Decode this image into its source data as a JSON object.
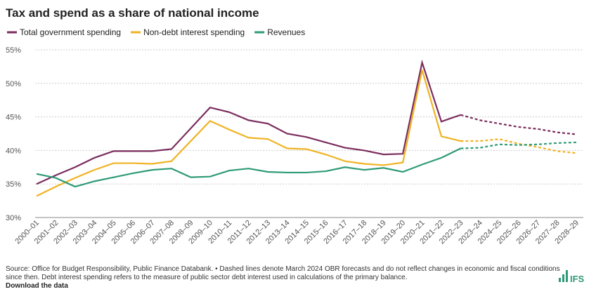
{
  "chart_data": {
    "type": "line",
    "title": "Tax and spend as a share of national income",
    "categories": [
      "2000–01",
      "2001–02",
      "2002–03",
      "2003–04",
      "2004–05",
      "2005–06",
      "2006–07",
      "2007–08",
      "2008–09",
      "2009–10",
      "2010–11",
      "2011–12",
      "2012–13",
      "2013–14",
      "2014–15",
      "2015–16",
      "2016–17",
      "2017–18",
      "2018–19",
      "2019–20",
      "2020–21",
      "2021–22",
      "2022–23",
      "2023–24",
      "2024–25",
      "2025–26",
      "2026–27",
      "2027–28",
      "2028–29"
    ],
    "forecast_start": "2022–23",
    "series": [
      {
        "name": "Total government spending",
        "color": "#7b2d5e",
        "values": [
          35.0,
          36.3,
          37.5,
          38.9,
          39.9,
          39.9,
          39.9,
          40.2,
          43.3,
          46.4,
          45.7,
          44.5,
          44.0,
          42.5,
          42.0,
          41.2,
          40.4,
          40.0,
          39.4,
          39.5,
          53.1,
          44.3,
          45.3,
          44.5,
          44.0,
          43.5,
          43.2,
          42.7,
          42.4
        ]
      },
      {
        "name": "Non-debt interest spending",
        "color": "#f0b323",
        "values": [
          33.2,
          34.6,
          35.9,
          37.1,
          38.1,
          38.1,
          38.0,
          38.4,
          41.4,
          44.4,
          43.1,
          41.9,
          41.7,
          40.3,
          40.2,
          39.4,
          38.4,
          38.0,
          37.8,
          38.2,
          52.0,
          42.1,
          41.4,
          41.4,
          41.7,
          41.0,
          40.5,
          39.9,
          39.6
        ]
      },
      {
        "name": "Revenues",
        "color": "#2e9a78",
        "values": [
          36.5,
          35.9,
          34.6,
          35.4,
          36.0,
          36.6,
          37.1,
          37.3,
          36.0,
          36.1,
          37.0,
          37.3,
          36.8,
          36.7,
          36.7,
          36.9,
          37.5,
          37.1,
          37.4,
          36.8,
          37.9,
          38.9,
          40.3,
          40.4,
          40.9,
          40.8,
          40.9,
          41.1,
          41.2
        ]
      }
    ],
    "ylim": [
      30,
      55
    ],
    "yticks": [
      {
        "value": 30,
        "label": "30%"
      },
      {
        "value": 35,
        "label": "35%"
      },
      {
        "value": 40,
        "label": "40%"
      },
      {
        "value": 45,
        "label": "45%"
      },
      {
        "value": 50,
        "label": "50%"
      },
      {
        "value": 55,
        "label": "55%"
      }
    ],
    "grid": true,
    "caption": [
      "Source: Office for Budget Responsibility, Public Finance Databank. • Dashed lines denote March 2024 OBR forecasts and do not reflect changes in economic and fiscal conditions",
      "since then. Debt interest spending refers to the measure of public sector debt interest used in calculations of the primary balance."
    ],
    "link": "Download the data",
    "logo": "IFS"
  }
}
